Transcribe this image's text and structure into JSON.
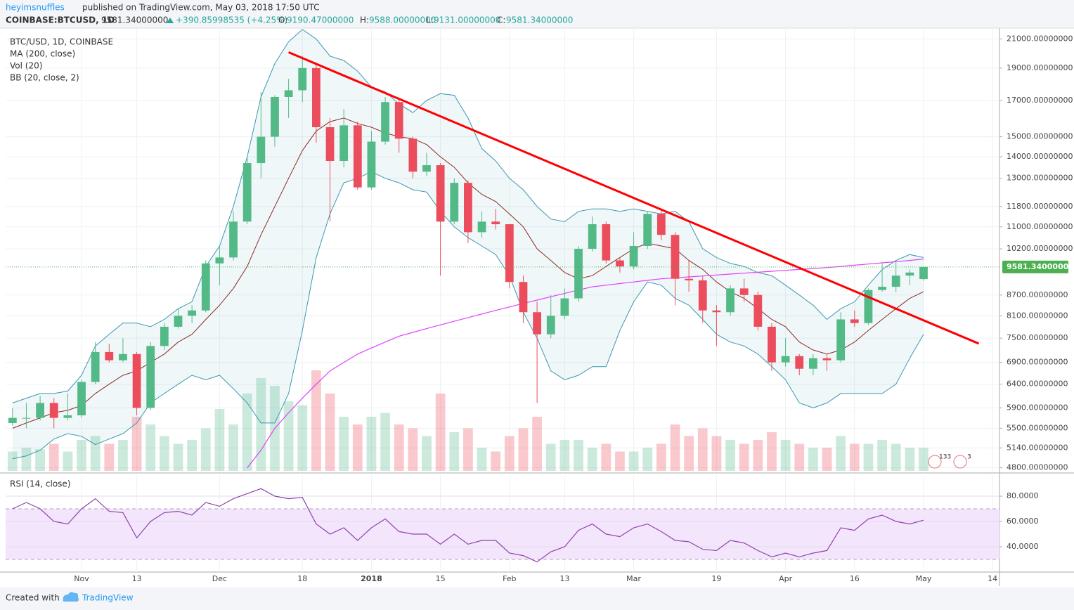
{
  "header": {
    "author": "heyimsnuffles",
    "published": "published on TradingView.com, May 03, 2018 17:50 UTC",
    "symbol": "COINBASE:BTCUSD, 1D",
    "price": "9581.34000000",
    "change": "+390.85998535 (+4.25%)",
    "ohlc": [
      {
        "label": "O:",
        "value": "9190.47000000"
      },
      {
        "label": "H:",
        "value": "9588.00000000"
      },
      {
        "label": "L:",
        "value": "9131.00000000"
      },
      {
        "label": "C:",
        "value": "9581.34000000"
      }
    ]
  },
  "legend": [
    "BTC/USD, 1D, COINBASE",
    "MA (200, close)",
    "Vol (20)",
    "BB (20, close, 2)"
  ],
  "event_badges": [
    "133",
    "3"
  ],
  "footer": {
    "created": "Created with",
    "brand": "TradingView"
  },
  "chart_data": {
    "type": "candlestick",
    "log_scale": true,
    "grid": true,
    "up_color": "#53b987",
    "down_color": "#eb4d5c",
    "categories": [
      null,
      null,
      null,
      null,
      null,
      "Nov",
      null,
      null,
      null,
      "13",
      null,
      null,
      null,
      null,
      null,
      "Dec",
      null,
      null,
      null,
      null,
      null,
      "18",
      null,
      null,
      null,
      null,
      "2018",
      null,
      null,
      null,
      null,
      "15",
      null,
      null,
      null,
      null,
      "Feb",
      null,
      null,
      null,
      "13",
      null,
      null,
      null,
      null,
      "Mar",
      null,
      null,
      null,
      null,
      null,
      "19",
      null,
      null,
      null,
      null,
      "Apr",
      null,
      null,
      null,
      null,
      "16",
      null,
      null,
      null,
      null,
      "May",
      null,
      null,
      null,
      null,
      "14"
    ],
    "ohlc": [
      [
        5600,
        5900,
        5550,
        5700
      ],
      [
        5700,
        6000,
        5500,
        5700
      ],
      [
        5700,
        6150,
        5650,
        6000
      ],
      [
        6000,
        6100,
        5500,
        5700
      ],
      [
        5700,
        6200,
        5650,
        5750
      ],
      [
        5750,
        6500,
        5700,
        6450
      ],
      [
        6450,
        7400,
        6400,
        7150
      ],
      [
        7150,
        7350,
        6900,
        6950
      ],
      [
        6950,
        7500,
        6900,
        7100
      ],
      [
        7100,
        7150,
        5750,
        5900
      ],
      [
        5900,
        7400,
        5850,
        7300
      ],
      [
        7300,
        7900,
        7200,
        7800
      ],
      [
        7800,
        8300,
        7750,
        8100
      ],
      [
        8100,
        8400,
        7900,
        8250
      ],
      [
        8250,
        9800,
        8200,
        9700
      ],
      [
        9700,
        10300,
        9000,
        9900
      ],
      [
        9900,
        11600,
        9800,
        11200
      ],
      [
        11200,
        14000,
        11100,
        13700
      ],
      [
        13700,
        17500,
        13000,
        15000
      ],
      [
        15000,
        17300,
        14500,
        17200
      ],
      [
        17200,
        18300,
        16000,
        17600
      ],
      [
        17600,
        19800,
        16900,
        19000
      ],
      [
        19000,
        19300,
        14700,
        15500
      ],
      [
        15500,
        16000,
        11200,
        13800
      ],
      [
        13800,
        16500,
        13500,
        15600
      ],
      [
        15600,
        15800,
        12500,
        12600
      ],
      [
        12600,
        15300,
        12500,
        14750
      ],
      [
        14750,
        17200,
        14600,
        16900
      ],
      [
        16900,
        17100,
        14200,
        14900
      ],
      [
        14900,
        15000,
        13000,
        13300
      ],
      [
        13300,
        14200,
        13100,
        13600
      ],
      [
        13600,
        13700,
        9300,
        11200
      ],
      [
        11200,
        13000,
        11100,
        12800
      ],
      [
        12800,
        12900,
        10400,
        10800
      ],
      [
        10800,
        11600,
        10600,
        11200
      ],
      [
        11200,
        11700,
        10900,
        11100
      ],
      [
        11100,
        11100,
        8900,
        9100
      ],
      [
        9100,
        9300,
        7900,
        8200
      ],
      [
        8200,
        8500,
        6000,
        7600
      ],
      [
        7600,
        8700,
        7500,
        8100
      ],
      [
        8100,
        8900,
        8000,
        8600
      ],
      [
        8600,
        10300,
        8500,
        10200
      ],
      [
        10200,
        11400,
        10100,
        11100
      ],
      [
        11100,
        11200,
        9700,
        9800
      ],
      [
        9800,
        9900,
        9400,
        9600
      ],
      [
        9600,
        10800,
        9500,
        10300
      ],
      [
        10300,
        11600,
        10200,
        11500
      ],
      [
        11500,
        11700,
        10500,
        10700
      ],
      [
        10700,
        10800,
        8400,
        9200
      ],
      [
        9200,
        9800,
        8800,
        9150
      ],
      [
        9150,
        9300,
        7900,
        8250
      ],
      [
        8250,
        8400,
        7300,
        8200
      ],
      [
        8200,
        9000,
        8100,
        8900
      ],
      [
        8900,
        9200,
        8500,
        8700
      ],
      [
        8700,
        8800,
        7700,
        7800
      ],
      [
        7800,
        7900,
        6700,
        6900
      ],
      [
        6900,
        7500,
        6800,
        7050
      ],
      [
        7050,
        7100,
        6600,
        6750
      ],
      [
        6750,
        7100,
        6600,
        7000
      ],
      [
        7000,
        7100,
        6700,
        6950
      ],
      [
        6950,
        8200,
        6900,
        8000
      ],
      [
        8000,
        8250,
        7800,
        7900
      ],
      [
        7900,
        8900,
        7850,
        8850
      ],
      [
        8850,
        9700,
        8800,
        8950
      ],
      [
        8950,
        9800,
        8800,
        9300
      ],
      [
        9300,
        9500,
        9000,
        9400
      ],
      [
        9190.47,
        9588,
        9131,
        9581.34
      ],
      null,
      null,
      null,
      null,
      null
    ],
    "volume": [
      25,
      30,
      28,
      35,
      25,
      40,
      45,
      35,
      40,
      70,
      60,
      45,
      35,
      40,
      55,
      80,
      60,
      100,
      120,
      110,
      90,
      85,
      130,
      100,
      70,
      60,
      70,
      75,
      60,
      55,
      45,
      100,
      50,
      55,
      30,
      25,
      45,
      55,
      70,
      35,
      40,
      40,
      30,
      35,
      25,
      25,
      30,
      35,
      60,
      45,
      55,
      45,
      40,
      35,
      40,
      50,
      40,
      35,
      30,
      30,
      45,
      35,
      35,
      40,
      35,
      30,
      30,
      null,
      null,
      null,
      null,
      null
    ],
    "ma200": {
      "color": "#e040fb",
      "values": [
        null,
        null,
        null,
        null,
        null,
        null,
        null,
        null,
        null,
        null,
        null,
        null,
        null,
        null,
        null,
        null,
        null,
        4800,
        5100,
        5500,
        5800,
        6100,
        6400,
        6700,
        6900,
        7100,
        7250,
        7400,
        7550,
        7650,
        7750,
        7850,
        7950,
        8050,
        8150,
        8250,
        8350,
        8450,
        8550,
        8650,
        8750,
        8850,
        8950,
        9000,
        9050,
        9100,
        9150,
        9200,
        9230,
        9260,
        9290,
        9320,
        9350,
        9380,
        9410,
        9440,
        9470,
        9500,
        9530,
        9560,
        9600,
        9640,
        9680,
        9720,
        9760,
        9800,
        9850,
        null,
        null,
        null,
        null,
        null
      ]
    },
    "bb": {
      "color": "#3a97b0",
      "basis_color": "#8d2b22",
      "upper": [
        6000,
        6100,
        6200,
        6200,
        6250,
        6600,
        7300,
        7600,
        7900,
        7900,
        7800,
        8000,
        8300,
        8500,
        9600,
        10300,
        11800,
        14000,
        17200,
        19300,
        20800,
        21700,
        21000,
        19800,
        19500,
        18800,
        17800,
        17500,
        16800,
        16300,
        17000,
        17400,
        17300,
        16000,
        14400,
        13800,
        13000,
        12500,
        11800,
        11300,
        11200,
        11600,
        11700,
        11700,
        11600,
        11700,
        11600,
        11500,
        11600,
        11200,
        10200,
        9900,
        9700,
        9600,
        9400,
        9300,
        9000,
        8700,
        8400,
        8000,
        8300,
        8500,
        9000,
        9500,
        9800,
        10000,
        9900,
        null,
        null,
        null,
        null,
        null
      ],
      "basis": [
        5500,
        5600,
        5700,
        5800,
        5850,
        5950,
        6200,
        6400,
        6600,
        6700,
        6900,
        7100,
        7400,
        7600,
        8000,
        8400,
        8900,
        9600,
        10700,
        11800,
        13000,
        14300,
        15300,
        15800,
        16000,
        15700,
        15500,
        15200,
        15000,
        14900,
        14600,
        14000,
        13500,
        12800,
        12300,
        12000,
        11500,
        11000,
        10200,
        9800,
        9400,
        9200,
        9300,
        9600,
        9900,
        10200,
        10400,
        10300,
        10200,
        9800,
        9500,
        9100,
        8800,
        8600,
        8300,
        8000,
        7800,
        7400,
        7200,
        7100,
        7200,
        7400,
        7700,
        8000,
        8300,
        8600,
        8800,
        null,
        null,
        null,
        null,
        null
      ],
      "lower": [
        4950,
        5000,
        5100,
        5300,
        5400,
        5350,
        5200,
        5300,
        5400,
        5600,
        6000,
        6200,
        6400,
        6600,
        6500,
        6600,
        6300,
        6000,
        5600,
        5600,
        6200,
        7700,
        9900,
        11500,
        12800,
        13000,
        13300,
        13000,
        12800,
        12500,
        12400,
        11600,
        11000,
        10600,
        10300,
        10000,
        9300,
        8200,
        7500,
        6700,
        6500,
        6600,
        6800,
        6800,
        7700,
        8500,
        9100,
        9000,
        8600,
        8400,
        8000,
        7600,
        7400,
        7300,
        7100,
        6800,
        6500,
        6000,
        5900,
        6000,
        6200,
        6200,
        6200,
        6200,
        6400,
        7000,
        7600,
        null,
        null,
        null,
        null,
        null
      ]
    },
    "trendline": {
      "color": "#ff0000",
      "start": [
        20,
        20060
      ],
      "end": [
        70,
        7360
      ]
    },
    "last_price": {
      "value": 9581.34,
      "label": "9581.34000000"
    },
    "ylim": [
      4750,
      21800
    ],
    "yticks": [
      {
        "value": 21000,
        "label": "21000.00000000"
      },
      {
        "value": 19000,
        "label": "19000.00000000"
      },
      {
        "value": 17000,
        "label": "17000.00000000"
      },
      {
        "value": 15000,
        "label": "15000.00000000"
      },
      {
        "value": 14000,
        "label": "14000.00000000"
      },
      {
        "value": 13000,
        "label": "13000.00000000"
      },
      {
        "value": 11800,
        "label": "11800.00000000"
      },
      {
        "value": 11000,
        "label": "11000.00000000"
      },
      {
        "value": 10200,
        "label": "10200.00000000"
      },
      {
        "value": 8700,
        "label": "8700.00000000"
      },
      {
        "value": 8100,
        "label": "8100.00000000"
      },
      {
        "value": 7500,
        "label": "7500.00000000"
      },
      {
        "value": 6900,
        "label": "6900.00000000"
      },
      {
        "value": 6400,
        "label": "6400.00000000"
      },
      {
        "value": 5900,
        "label": "5900.00000000"
      },
      {
        "value": 5500,
        "label": "5500.00000000"
      },
      {
        "value": 5140,
        "label": "5140.00000000"
      },
      {
        "value": 4800,
        "label": "4800.00000000"
      }
    ],
    "rsi": {
      "title": "RSI (14, close)",
      "color": "#8e44ad",
      "band": [
        30,
        70
      ],
      "ylim": [
        20,
        96.7
      ],
      "yticks": [
        {
          "value": 80,
          "label": "80.0000"
        },
        {
          "value": 60,
          "label": "60.0000"
        },
        {
          "value": 40,
          "label": "40.0000"
        }
      ],
      "values": [
        70,
        75,
        70,
        60,
        58,
        70,
        78,
        68,
        67,
        47,
        60,
        67,
        68,
        65,
        75,
        72,
        78,
        82,
        86,
        80,
        78,
        79,
        58,
        50,
        55,
        45,
        55,
        62,
        52,
        50,
        50,
        42,
        50,
        42,
        45,
        45,
        35,
        33,
        28,
        36,
        40,
        53,
        58,
        50,
        48,
        55,
        58,
        52,
        45,
        44,
        38,
        37,
        45,
        43,
        37,
        32,
        35,
        32,
        35,
        37,
        55,
        53,
        62,
        65,
        60,
        58,
        61,
        null,
        null,
        null,
        null,
        null
      ]
    }
  }
}
